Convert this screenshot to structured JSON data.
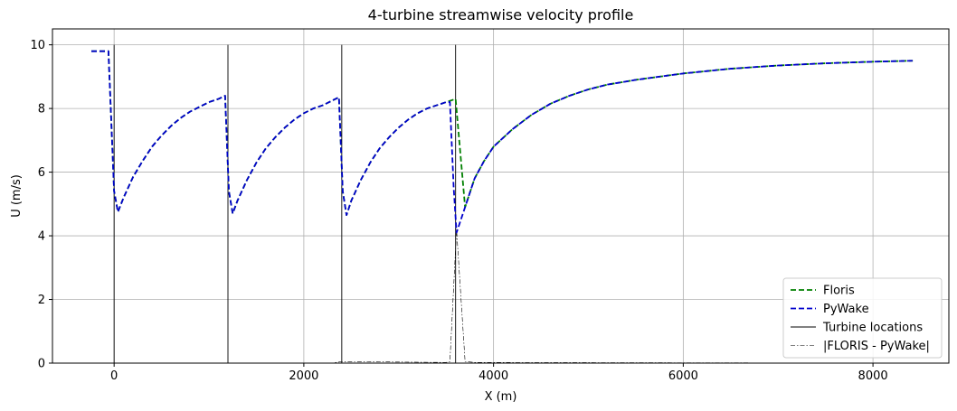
{
  "chart_data": {
    "type": "line",
    "title": "4-turbine streamwise velocity profile",
    "xlabel": "X (m)",
    "ylabel": "U (m/s)",
    "xlim": [
      -650,
      8800
    ],
    "ylim": [
      0,
      10.5
    ],
    "xticks": [
      0,
      2000,
      4000,
      6000,
      8000
    ],
    "yticks": [
      0,
      2,
      4,
      6,
      8,
      10
    ],
    "grid": true,
    "legend_position": "lower-right",
    "series": [
      {
        "name": "Floris",
        "style": "dashed",
        "color": "#008000",
        "points": [
          [
            -240,
            9.8
          ],
          [
            -60,
            9.8
          ],
          [
            0,
            5.4
          ],
          [
            40,
            4.75
          ],
          [
            100,
            5.2
          ],
          [
            200,
            5.85
          ],
          [
            300,
            6.35
          ],
          [
            400,
            6.8
          ],
          [
            500,
            7.15
          ],
          [
            600,
            7.45
          ],
          [
            700,
            7.7
          ],
          [
            800,
            7.9
          ],
          [
            900,
            8.05
          ],
          [
            1000,
            8.2
          ],
          [
            1100,
            8.3
          ],
          [
            1170,
            8.4
          ],
          [
            1210,
            5.4
          ],
          [
            1250,
            4.7
          ],
          [
            1300,
            5.1
          ],
          [
            1400,
            5.75
          ],
          [
            1500,
            6.3
          ],
          [
            1600,
            6.75
          ],
          [
            1700,
            7.1
          ],
          [
            1800,
            7.4
          ],
          [
            1900,
            7.65
          ],
          [
            2000,
            7.85
          ],
          [
            2100,
            8.0
          ],
          [
            2200,
            8.1
          ],
          [
            2300,
            8.25
          ],
          [
            2370,
            8.35
          ],
          [
            2410,
            5.4
          ],
          [
            2450,
            4.65
          ],
          [
            2500,
            5.1
          ],
          [
            2600,
            5.75
          ],
          [
            2700,
            6.3
          ],
          [
            2800,
            6.75
          ],
          [
            2900,
            7.1
          ],
          [
            3000,
            7.4
          ],
          [
            3100,
            7.65
          ],
          [
            3200,
            7.85
          ],
          [
            3300,
            8.0
          ],
          [
            3400,
            8.1
          ],
          [
            3500,
            8.2
          ],
          [
            3600,
            8.3
          ],
          [
            3700,
            4.9
          ],
          [
            3800,
            5.8
          ],
          [
            3900,
            6.35
          ],
          [
            4000,
            6.8
          ],
          [
            4200,
            7.35
          ],
          [
            4400,
            7.8
          ],
          [
            4600,
            8.15
          ],
          [
            4800,
            8.4
          ],
          [
            5000,
            8.6
          ],
          [
            5200,
            8.75
          ],
          [
            5500,
            8.9
          ],
          [
            6000,
            9.1
          ],
          [
            6500,
            9.25
          ],
          [
            7000,
            9.35
          ],
          [
            7500,
            9.42
          ],
          [
            8000,
            9.47
          ],
          [
            8420,
            9.5
          ]
        ]
      },
      {
        "name": "PyWake",
        "style": "dashed",
        "color": "#0000cc",
        "points": [
          [
            -240,
            9.8
          ],
          [
            -60,
            9.8
          ],
          [
            0,
            5.4
          ],
          [
            40,
            4.75
          ],
          [
            100,
            5.2
          ],
          [
            200,
            5.85
          ],
          [
            300,
            6.35
          ],
          [
            400,
            6.8
          ],
          [
            500,
            7.15
          ],
          [
            600,
            7.45
          ],
          [
            700,
            7.7
          ],
          [
            800,
            7.9
          ],
          [
            900,
            8.05
          ],
          [
            1000,
            8.2
          ],
          [
            1100,
            8.3
          ],
          [
            1170,
            8.4
          ],
          [
            1210,
            5.4
          ],
          [
            1250,
            4.7
          ],
          [
            1300,
            5.1
          ],
          [
            1400,
            5.75
          ],
          [
            1500,
            6.3
          ],
          [
            1600,
            6.75
          ],
          [
            1700,
            7.1
          ],
          [
            1800,
            7.4
          ],
          [
            1900,
            7.65
          ],
          [
            2000,
            7.85
          ],
          [
            2100,
            8.0
          ],
          [
            2200,
            8.1
          ],
          [
            2300,
            8.25
          ],
          [
            2370,
            8.35
          ],
          [
            2410,
            5.4
          ],
          [
            2450,
            4.65
          ],
          [
            2500,
            5.1
          ],
          [
            2600,
            5.75
          ],
          [
            2700,
            6.3
          ],
          [
            2800,
            6.75
          ],
          [
            2900,
            7.1
          ],
          [
            3000,
            7.4
          ],
          [
            3100,
            7.65
          ],
          [
            3200,
            7.85
          ],
          [
            3300,
            8.0
          ],
          [
            3400,
            8.1
          ],
          [
            3500,
            8.2
          ],
          [
            3540,
            8.2
          ],
          [
            3580,
            5.5
          ],
          [
            3610,
            4.1
          ],
          [
            3700,
            4.9
          ],
          [
            3800,
            5.8
          ],
          [
            3900,
            6.35
          ],
          [
            4000,
            6.8
          ],
          [
            4200,
            7.35
          ],
          [
            4400,
            7.8
          ],
          [
            4600,
            8.15
          ],
          [
            4800,
            8.4
          ],
          [
            5000,
            8.6
          ],
          [
            5200,
            8.75
          ],
          [
            5500,
            8.9
          ],
          [
            6000,
            9.1
          ],
          [
            6500,
            9.25
          ],
          [
            7000,
            9.35
          ],
          [
            7500,
            9.42
          ],
          [
            8000,
            9.47
          ],
          [
            8420,
            9.5
          ]
        ]
      },
      {
        "name": "Turbine locations",
        "style": "solid",
        "color": "#000000",
        "x_positions": [
          0,
          1200,
          2400,
          3600
        ],
        "y_range": [
          0,
          10
        ]
      },
      {
        "name": "|FLORIS - PyWake|",
        "style": "dashdot",
        "color": "#000000",
        "points": [
          [
            -240,
            0.0
          ],
          [
            2300,
            0.0
          ],
          [
            2400,
            0.05
          ],
          [
            3500,
            0.02
          ],
          [
            3540,
            0.05
          ],
          [
            3610,
            4.2
          ],
          [
            3700,
            0.05
          ],
          [
            3800,
            0.02
          ],
          [
            8420,
            0.0
          ]
        ]
      }
    ]
  }
}
